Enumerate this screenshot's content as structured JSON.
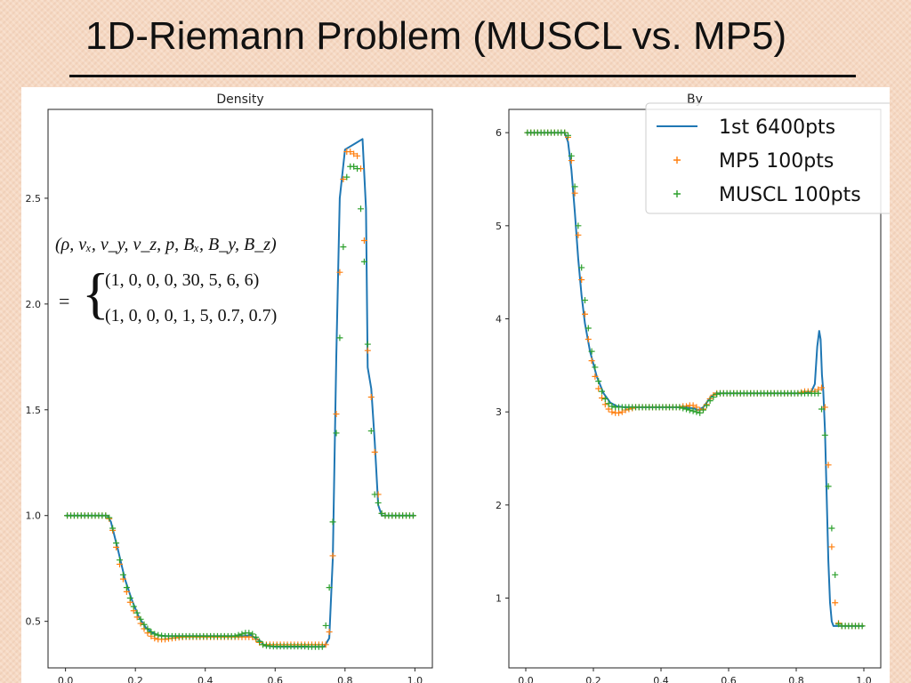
{
  "slide": {
    "title": "1D-Riemann Problem (MUSCL vs. MP5)"
  },
  "equation": {
    "lhs": "(ρ, vₓ, v_y, v_z, p, Bₓ, B_y, B_z)",
    "eq_sign": "=",
    "brace": "{",
    "row1": "(1, 0, 0, 0, 30, 5, 6, 6)",
    "row2": "(1, 0, 0, 0, 1, 5, 0.7, 0.7)"
  },
  "colors": {
    "reference": "#1f77b4",
    "mp5": "#ff7f0e",
    "muscl": "#2ca02c"
  },
  "chart_data": [
    {
      "type": "line",
      "title": "Density",
      "xlim": [
        -0.05,
        1.05
      ],
      "ylim": [
        0.28,
        2.92
      ],
      "xticks": [
        0.0,
        0.2,
        0.4,
        0.6,
        0.8,
        1.0
      ],
      "xtick_labels": [
        "0.0",
        "0.2",
        "0.4",
        "0.6",
        "0.8",
        "1.0"
      ],
      "yticks": [
        0.5,
        1.0,
        1.5,
        2.0,
        2.5
      ],
      "ytick_labels": [
        "0.5",
        "1.0",
        "1.5",
        "2.0",
        "2.5"
      ],
      "series": [
        {
          "name": "1st 6400pts",
          "style": "line",
          "x": [
            0.0,
            0.12,
            0.13,
            0.15,
            0.17,
            0.19,
            0.21,
            0.23,
            0.25,
            0.27,
            0.29,
            0.35,
            0.45,
            0.51,
            0.53,
            0.555,
            0.57,
            0.6,
            0.7,
            0.74,
            0.755,
            0.765,
            0.775,
            0.785,
            0.8,
            0.83,
            0.85,
            0.86,
            0.865,
            0.875,
            0.885,
            0.895,
            0.905,
            1.0
          ],
          "y": [
            1.0,
            1.0,
            0.97,
            0.84,
            0.7,
            0.6,
            0.52,
            0.47,
            0.445,
            0.432,
            0.43,
            0.43,
            0.43,
            0.43,
            0.435,
            0.41,
            0.385,
            0.38,
            0.38,
            0.38,
            0.42,
            0.8,
            1.75,
            2.5,
            2.73,
            2.76,
            2.78,
            2.45,
            1.7,
            1.6,
            1.35,
            1.05,
            1.0,
            1.0
          ]
        },
        {
          "name": "MP5 100pts",
          "style": "plus",
          "x": [
            0.005,
            0.015,
            0.025,
            0.035,
            0.045,
            0.055,
            0.065,
            0.075,
            0.085,
            0.095,
            0.105,
            0.115,
            0.125,
            0.135,
            0.145,
            0.155,
            0.165,
            0.175,
            0.185,
            0.195,
            0.205,
            0.215,
            0.225,
            0.235,
            0.245,
            0.255,
            0.265,
            0.275,
            0.285,
            0.295,
            0.305,
            0.315,
            0.325,
            0.335,
            0.345,
            0.355,
            0.365,
            0.375,
            0.385,
            0.395,
            0.405,
            0.415,
            0.425,
            0.435,
            0.445,
            0.455,
            0.465,
            0.475,
            0.485,
            0.495,
            0.505,
            0.515,
            0.525,
            0.535,
            0.545,
            0.555,
            0.565,
            0.575,
            0.585,
            0.595,
            0.605,
            0.615,
            0.625,
            0.635,
            0.645,
            0.655,
            0.665,
            0.675,
            0.685,
            0.695,
            0.705,
            0.715,
            0.725,
            0.735,
            0.745,
            0.755,
            0.765,
            0.775,
            0.785,
            0.795,
            0.805,
            0.815,
            0.825,
            0.835,
            0.845,
            0.855,
            0.865,
            0.875,
            0.885,
            0.895,
            0.905,
            0.915,
            0.925,
            0.935,
            0.945,
            0.955,
            0.965,
            0.975,
            0.985,
            0.995
          ],
          "y": [
            1.0,
            1.0,
            1.0,
            1.0,
            1.0,
            1.0,
            1.0,
            1.0,
            1.0,
            1.0,
            1.0,
            1.0,
            0.985,
            0.93,
            0.85,
            0.77,
            0.7,
            0.64,
            0.59,
            0.55,
            0.52,
            0.49,
            0.465,
            0.445,
            0.43,
            0.42,
            0.415,
            0.415,
            0.415,
            0.418,
            0.42,
            0.422,
            0.424,
            0.425,
            0.426,
            0.426,
            0.426,
            0.426,
            0.426,
            0.426,
            0.426,
            0.426,
            0.426,
            0.426,
            0.426,
            0.426,
            0.426,
            0.426,
            0.426,
            0.426,
            0.426,
            0.426,
            0.426,
            0.426,
            0.415,
            0.4,
            0.39,
            0.39,
            0.39,
            0.39,
            0.39,
            0.39,
            0.39,
            0.39,
            0.39,
            0.39,
            0.39,
            0.39,
            0.39,
            0.39,
            0.39,
            0.39,
            0.39,
            0.39,
            0.39,
            0.45,
            0.81,
            1.48,
            2.15,
            2.59,
            2.72,
            2.72,
            2.71,
            2.7,
            2.64,
            2.3,
            1.78,
            1.56,
            1.3,
            1.1,
            1.01,
            1.0,
            1.0,
            1.0,
            1.0,
            1.0,
            1.0,
            1.0,
            1.0,
            1.0
          ]
        },
        {
          "name": "MUSCL 100pts",
          "style": "plus",
          "x": [
            0.005,
            0.015,
            0.025,
            0.035,
            0.045,
            0.055,
            0.065,
            0.075,
            0.085,
            0.095,
            0.105,
            0.115,
            0.125,
            0.135,
            0.145,
            0.155,
            0.165,
            0.175,
            0.185,
            0.195,
            0.205,
            0.215,
            0.225,
            0.235,
            0.245,
            0.255,
            0.265,
            0.275,
            0.285,
            0.295,
            0.305,
            0.315,
            0.325,
            0.335,
            0.345,
            0.355,
            0.365,
            0.375,
            0.385,
            0.395,
            0.405,
            0.415,
            0.425,
            0.435,
            0.445,
            0.455,
            0.465,
            0.475,
            0.485,
            0.495,
            0.505,
            0.515,
            0.525,
            0.535,
            0.545,
            0.555,
            0.565,
            0.575,
            0.585,
            0.595,
            0.605,
            0.615,
            0.625,
            0.635,
            0.645,
            0.655,
            0.665,
            0.675,
            0.685,
            0.695,
            0.705,
            0.715,
            0.725,
            0.735,
            0.745,
            0.755,
            0.765,
            0.775,
            0.785,
            0.795,
            0.805,
            0.815,
            0.825,
            0.835,
            0.845,
            0.855,
            0.865,
            0.875,
            0.885,
            0.895,
            0.905,
            0.915,
            0.925,
            0.935,
            0.945,
            0.955,
            0.965,
            0.975,
            0.985,
            0.995
          ],
          "y": [
            1.0,
            1.0,
            1.0,
            1.0,
            1.0,
            1.0,
            1.0,
            1.0,
            1.0,
            1.0,
            1.0,
            1.0,
            0.99,
            0.94,
            0.87,
            0.79,
            0.72,
            0.66,
            0.61,
            0.57,
            0.54,
            0.51,
            0.485,
            0.465,
            0.45,
            0.44,
            0.435,
            0.432,
            0.43,
            0.43,
            0.43,
            0.43,
            0.43,
            0.43,
            0.43,
            0.43,
            0.43,
            0.43,
            0.43,
            0.43,
            0.43,
            0.43,
            0.43,
            0.43,
            0.43,
            0.43,
            0.43,
            0.43,
            0.43,
            0.435,
            0.44,
            0.445,
            0.445,
            0.44,
            0.425,
            0.405,
            0.39,
            0.385,
            0.383,
            0.382,
            0.382,
            0.382,
            0.382,
            0.382,
            0.382,
            0.382,
            0.382,
            0.382,
            0.382,
            0.38,
            0.38,
            0.38,
            0.38,
            0.38,
            0.48,
            0.66,
            0.97,
            1.39,
            1.84,
            2.27,
            2.6,
            2.65,
            2.65,
            2.64,
            2.45,
            2.2,
            1.81,
            1.4,
            1.1,
            1.06,
            1.01,
            1.0,
            1.0,
            1.0,
            1.0,
            1.0,
            1.0,
            1.0,
            1.0,
            1.0
          ]
        }
      ]
    },
    {
      "type": "line",
      "title": "By",
      "xlim": [
        -0.05,
        1.05
      ],
      "ylim": [
        0.25,
        6.25
      ],
      "xticks": [
        0.0,
        0.2,
        0.4,
        0.6,
        0.8,
        1.0
      ],
      "xtick_labels": [
        "0.0",
        "0.2",
        "0.4",
        "0.6",
        "0.8",
        "1.0"
      ],
      "yticks": [
        1,
        2,
        3,
        4,
        5,
        6
      ],
      "ytick_labels": [
        "1",
        "2",
        "3",
        "4",
        "5",
        "6"
      ],
      "legend": {
        "position": "top-right",
        "entries": [
          "1st 6400pts",
          "MP5 100pts",
          "MUSCL 100pts"
        ]
      },
      "series": [
        {
          "name": "1st 6400pts",
          "style": "line",
          "x": [
            0.0,
            0.115,
            0.125,
            0.135,
            0.145,
            0.155,
            0.165,
            0.175,
            0.19,
            0.21,
            0.23,
            0.25,
            0.27,
            0.29,
            0.35,
            0.45,
            0.495,
            0.51,
            0.525,
            0.545,
            0.56,
            0.58,
            0.7,
            0.82,
            0.845,
            0.855,
            0.862,
            0.868,
            0.872,
            0.876,
            0.88,
            0.885,
            0.89,
            0.895,
            0.9,
            0.905,
            0.91,
            1.0
          ],
          "y": [
            6.0,
            6.0,
            5.9,
            5.6,
            5.15,
            4.65,
            4.25,
            3.95,
            3.65,
            3.38,
            3.2,
            3.1,
            3.06,
            3.05,
            3.05,
            3.05,
            3.04,
            3.02,
            3.05,
            3.15,
            3.2,
            3.2,
            3.2,
            3.2,
            3.22,
            3.3,
            3.7,
            3.87,
            3.78,
            3.4,
            3.22,
            2.8,
            2.1,
            1.4,
            0.95,
            0.75,
            0.7,
            0.7
          ]
        },
        {
          "name": "MP5 100pts",
          "style": "plus",
          "x": [
            0.005,
            0.015,
            0.025,
            0.035,
            0.045,
            0.055,
            0.065,
            0.075,
            0.085,
            0.095,
            0.105,
            0.115,
            0.125,
            0.135,
            0.145,
            0.155,
            0.165,
            0.175,
            0.185,
            0.195,
            0.205,
            0.215,
            0.225,
            0.235,
            0.245,
            0.255,
            0.265,
            0.275,
            0.285,
            0.295,
            0.305,
            0.315,
            0.325,
            0.335,
            0.345,
            0.355,
            0.365,
            0.375,
            0.385,
            0.395,
            0.405,
            0.415,
            0.425,
            0.435,
            0.445,
            0.455,
            0.465,
            0.475,
            0.485,
            0.495,
            0.505,
            0.515,
            0.525,
            0.535,
            0.545,
            0.555,
            0.565,
            0.575,
            0.585,
            0.595,
            0.605,
            0.615,
            0.625,
            0.635,
            0.645,
            0.655,
            0.665,
            0.675,
            0.685,
            0.695,
            0.705,
            0.715,
            0.725,
            0.735,
            0.745,
            0.755,
            0.765,
            0.775,
            0.785,
            0.795,
            0.805,
            0.815,
            0.825,
            0.835,
            0.845,
            0.855,
            0.865,
            0.875,
            0.885,
            0.895,
            0.905,
            0.915,
            0.925,
            0.935,
            0.945,
            0.955,
            0.965,
            0.975,
            0.985,
            0.995
          ],
          "y": [
            6.0,
            6.0,
            6.0,
            6.0,
            6.0,
            6.0,
            6.0,
            6.0,
            6.0,
            6.0,
            6.0,
            6.0,
            5.95,
            5.7,
            5.35,
            4.9,
            4.42,
            4.05,
            3.78,
            3.55,
            3.38,
            3.25,
            3.15,
            3.08,
            3.03,
            3.0,
            2.99,
            2.99,
            3.0,
            3.02,
            3.03,
            3.04,
            3.05,
            3.05,
            3.05,
            3.05,
            3.05,
            3.05,
            3.05,
            3.05,
            3.05,
            3.05,
            3.05,
            3.05,
            3.05,
            3.05,
            3.06,
            3.06,
            3.07,
            3.07,
            3.05,
            3.02,
            3.03,
            3.08,
            3.14,
            3.18,
            3.2,
            3.2,
            3.2,
            3.2,
            3.2,
            3.2,
            3.2,
            3.2,
            3.2,
            3.2,
            3.2,
            3.2,
            3.2,
            3.2,
            3.2,
            3.2,
            3.2,
            3.2,
            3.2,
            3.2,
            3.2,
            3.2,
            3.2,
            3.2,
            3.2,
            3.21,
            3.22,
            3.22,
            3.22,
            3.22,
            3.24,
            3.26,
            3.05,
            2.43,
            1.55,
            0.95,
            0.73,
            0.7,
            0.7,
            0.7,
            0.7,
            0.7,
            0.7,
            0.7
          ]
        },
        {
          "name": "MUSCL 100pts",
          "style": "plus",
          "x": [
            0.005,
            0.015,
            0.025,
            0.035,
            0.045,
            0.055,
            0.065,
            0.075,
            0.085,
            0.095,
            0.105,
            0.115,
            0.125,
            0.135,
            0.145,
            0.155,
            0.165,
            0.175,
            0.185,
            0.195,
            0.205,
            0.215,
            0.225,
            0.235,
            0.245,
            0.255,
            0.265,
            0.275,
            0.285,
            0.295,
            0.305,
            0.315,
            0.325,
            0.335,
            0.345,
            0.355,
            0.365,
            0.375,
            0.385,
            0.395,
            0.405,
            0.415,
            0.425,
            0.435,
            0.445,
            0.455,
            0.465,
            0.475,
            0.485,
            0.495,
            0.505,
            0.515,
            0.525,
            0.535,
            0.545,
            0.555,
            0.565,
            0.575,
            0.585,
            0.595,
            0.605,
            0.615,
            0.625,
            0.635,
            0.645,
            0.655,
            0.665,
            0.675,
            0.685,
            0.695,
            0.705,
            0.715,
            0.725,
            0.735,
            0.745,
            0.755,
            0.765,
            0.775,
            0.785,
            0.795,
            0.805,
            0.815,
            0.825,
            0.835,
            0.845,
            0.855,
            0.865,
            0.875,
            0.885,
            0.895,
            0.905,
            0.915,
            0.925,
            0.935,
            0.945,
            0.955,
            0.965,
            0.975,
            0.985,
            0.995
          ],
          "y": [
            6.0,
            6.0,
            6.0,
            6.0,
            6.0,
            6.0,
            6.0,
            6.0,
            6.0,
            6.0,
            6.0,
            6.0,
            5.97,
            5.75,
            5.42,
            5.0,
            4.55,
            4.2,
            3.9,
            3.65,
            3.48,
            3.33,
            3.22,
            3.14,
            3.09,
            3.06,
            3.05,
            3.05,
            3.05,
            3.05,
            3.05,
            3.05,
            3.05,
            3.05,
            3.05,
            3.05,
            3.05,
            3.05,
            3.05,
            3.05,
            3.05,
            3.05,
            3.05,
            3.05,
            3.05,
            3.05,
            3.04,
            3.03,
            3.02,
            3.01,
            3.0,
            2.99,
            3.02,
            3.07,
            3.12,
            3.16,
            3.19,
            3.2,
            3.2,
            3.2,
            3.2,
            3.2,
            3.2,
            3.2,
            3.2,
            3.2,
            3.2,
            3.2,
            3.2,
            3.2,
            3.2,
            3.2,
            3.2,
            3.2,
            3.2,
            3.2,
            3.2,
            3.2,
            3.2,
            3.2,
            3.2,
            3.2,
            3.2,
            3.2,
            3.2,
            3.2,
            3.2,
            3.03,
            2.75,
            2.2,
            1.75,
            1.25,
            0.72,
            0.7,
            0.7,
            0.7,
            0.7,
            0.7,
            0.7,
            0.7
          ]
        }
      ]
    }
  ]
}
